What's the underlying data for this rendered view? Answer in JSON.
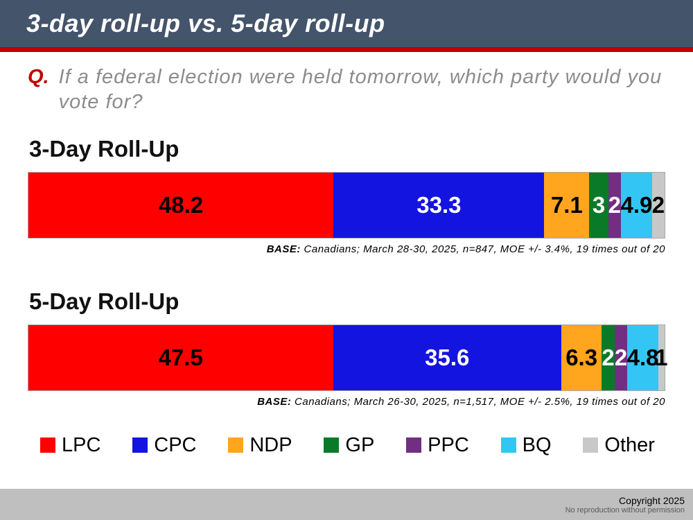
{
  "header": {
    "title": "3-day roll-up vs. 5-day roll-up"
  },
  "question": {
    "prefix": "Q.",
    "text": "If a federal election were held tomorrow, which party would you vote for?"
  },
  "parties": [
    {
      "name": "LPC",
      "color": "#FF0000",
      "label_color": "#000000"
    },
    {
      "name": "CPC",
      "color": "#1414E0",
      "label_color": "#FFFFFF"
    },
    {
      "name": "NDP",
      "color": "#FFA51E",
      "label_color": "#000000"
    },
    {
      "name": "GP",
      "color": "#0B7A28",
      "label_color": "#FFFFFF"
    },
    {
      "name": "PPC",
      "color": "#722E82",
      "label_color": "#FFFFFF"
    },
    {
      "name": "BQ",
      "color": "#33C6F4",
      "label_color": "#000000"
    },
    {
      "name": "Other",
      "color": "#C8C8C8",
      "label_color": "#000000"
    }
  ],
  "chart_data": [
    {
      "type": "bar",
      "orientation": "horizontal-stacked",
      "title": "3-Day Roll-Up",
      "categories": [
        "LPC",
        "CPC",
        "NDP",
        "GP",
        "PPC",
        "BQ",
        "Other"
      ],
      "values": [
        48.2,
        33.3,
        7.1,
        3,
        2,
        4.9,
        2
      ],
      "labels": [
        "48.2",
        "33.3",
        "7.1",
        "3",
        "2",
        "4.9",
        "2"
      ],
      "base_label": "BASE:",
      "base_text": " Canadians; March 28-30, 2025, n=847, MOE +/- 3.4%, 19 times out of 20"
    },
    {
      "type": "bar",
      "orientation": "horizontal-stacked",
      "title": "5-Day Roll-Up",
      "categories": [
        "LPC",
        "CPC",
        "NDP",
        "GP",
        "PPC",
        "BQ",
        "Other"
      ],
      "values": [
        47.5,
        35.6,
        6.3,
        2,
        2,
        4.8,
        1
      ],
      "labels": [
        "47.5",
        "35.6",
        "6.3",
        "2",
        "2",
        "4.8",
        "1"
      ],
      "base_label": "BASE:",
      "base_text": " Canadians; March 26-30, 2025, n=1,517, MOE +/- 2.5%, 19 times out of 20"
    }
  ],
  "footer": {
    "copyright": "Copyright 2025",
    "note": "No reproduction without permission"
  }
}
